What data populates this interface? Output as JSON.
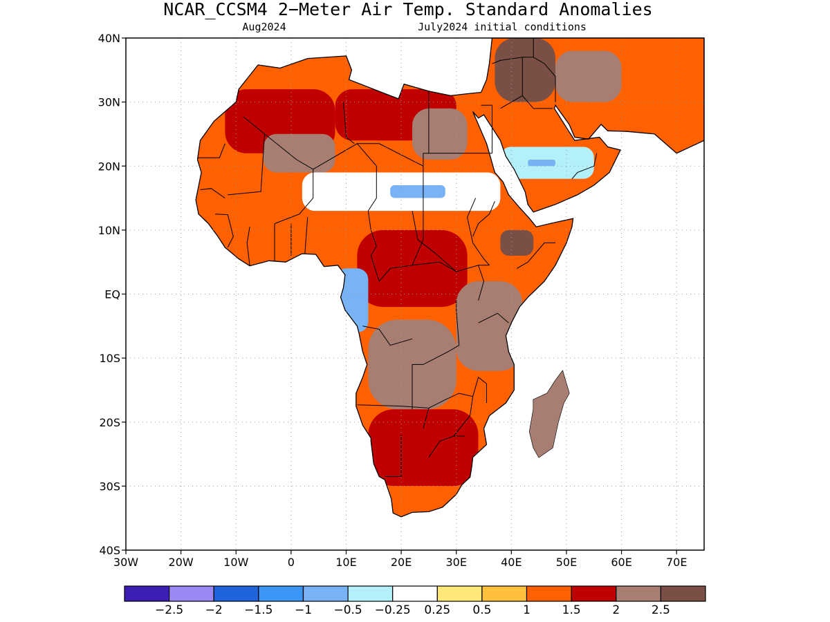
{
  "title": "NCAR_CCSM4 2−Meter Air Temp. Standard Anomalies",
  "subtitle_left": "Aug2024",
  "subtitle_right": "July2024 initial conditions",
  "map": {
    "lon_range": [
      -30,
      75
    ],
    "lat_range": [
      -40,
      40
    ],
    "lat_ticks": [
      {
        "value": 40,
        "label": "40N"
      },
      {
        "value": 30,
        "label": "30N"
      },
      {
        "value": 20,
        "label": "20N"
      },
      {
        "value": 10,
        "label": "10N"
      },
      {
        "value": 0,
        "label": "EQ"
      },
      {
        "value": -10,
        "label": "10S"
      },
      {
        "value": -20,
        "label": "20S"
      },
      {
        "value": -30,
        "label": "30S"
      },
      {
        "value": -40,
        "label": "40S"
      }
    ],
    "lon_ticks": [
      {
        "value": -30,
        "label": "30W"
      },
      {
        "value": -20,
        "label": "20W"
      },
      {
        "value": -10,
        "label": "10W"
      },
      {
        "value": 0,
        "label": "0"
      },
      {
        "value": 10,
        "label": "10E"
      },
      {
        "value": 20,
        "label": "20E"
      },
      {
        "value": 30,
        "label": "30E"
      },
      {
        "value": 40,
        "label": "40E"
      },
      {
        "value": 50,
        "label": "50E"
      },
      {
        "value": 60,
        "label": "60E"
      },
      {
        "value": 70,
        "label": "70E"
      }
    ],
    "gridlines": "dotted",
    "land_color": "#ffffff",
    "ocean_color": "#ffffff"
  },
  "colorbar": {
    "colors": [
      "#3c1eb4",
      "#9b88f2",
      "#1f64dc",
      "#3c96f5",
      "#78b4f5",
      "#b4f0fa",
      "#ffffff",
      "#ffe878",
      "#ffc03c",
      "#ff6000",
      "#c00000",
      "#a87e73",
      "#7a4f45"
    ],
    "labels": [
      "−2.5",
      "−2",
      "−1.5",
      "−1",
      "−0.5",
      "−0.25",
      "0.25",
      "0.5",
      "1",
      "1.5",
      "2",
      "2.5"
    ]
  },
  "anomaly_regions": [
    {
      "name": "sahara-west",
      "color": "#c00000",
      "lon": [
        -12,
        8
      ],
      "lat": [
        22,
        32
      ]
    },
    {
      "name": "sahara-central",
      "color": "#c00000",
      "lon": [
        8,
        30
      ],
      "lat": [
        24,
        32
      ]
    },
    {
      "name": "mauritania-mali",
      "color": "#a87e73",
      "lon": [
        -5,
        8
      ],
      "lat": [
        19,
        25
      ]
    },
    {
      "name": "libya-egypt",
      "color": "#a87e73",
      "lon": [
        22,
        32
      ],
      "lat": [
        21,
        29
      ]
    },
    {
      "name": "sahel-band",
      "color": "#ffffff",
      "lon": [
        2,
        38
      ],
      "lat": [
        13,
        19
      ]
    },
    {
      "name": "sahel-blue",
      "color": "#78b4f5",
      "lon": [
        18,
        28
      ],
      "lat": [
        15,
        17
      ]
    },
    {
      "name": "arabia-blue",
      "color": "#b4f0fa",
      "lon": [
        38,
        55
      ],
      "lat": [
        18,
        23
      ]
    },
    {
      "name": "arabia-blue-core",
      "color": "#78b4f5",
      "lon": [
        43,
        48
      ],
      "lat": [
        20,
        21
      ]
    },
    {
      "name": "middle-east",
      "color": "#7a4f45",
      "lon": [
        37,
        48
      ],
      "lat": [
        30,
        40
      ]
    },
    {
      "name": "iran",
      "color": "#a87e73",
      "lon": [
        48,
        60
      ],
      "lat": [
        30,
        38
      ]
    },
    {
      "name": "central-africa",
      "color": "#c00000",
      "lon": [
        12,
        32
      ],
      "lat": [
        -2,
        10
      ]
    },
    {
      "name": "congo-brown",
      "color": "#a87e73",
      "lon": [
        14,
        30
      ],
      "lat": [
        -18,
        -4
      ]
    },
    {
      "name": "east-africa",
      "color": "#a87e73",
      "lon": [
        30,
        42
      ],
      "lat": [
        -12,
        2
      ]
    },
    {
      "name": "ethiopia",
      "color": "#7a4f45",
      "lon": [
        38,
        44
      ],
      "lat": [
        6,
        10
      ]
    },
    {
      "name": "southern-africa",
      "color": "#c00000",
      "lon": [
        14,
        34
      ],
      "lat": [
        -30,
        -18
      ]
    },
    {
      "name": "south-africa-cape",
      "color": "#ff6000",
      "lon": [
        17,
        28
      ],
      "lat": [
        -34,
        -30
      ]
    },
    {
      "name": "west-coast-blue",
      "color": "#78b4f5",
      "lon": [
        8,
        14
      ],
      "lat": [
        -6,
        4
      ]
    },
    {
      "name": "madagascar",
      "color": "#a87e73",
      "lon": [
        44,
        50
      ],
      "lat": [
        -24,
        -14
      ]
    }
  ]
}
